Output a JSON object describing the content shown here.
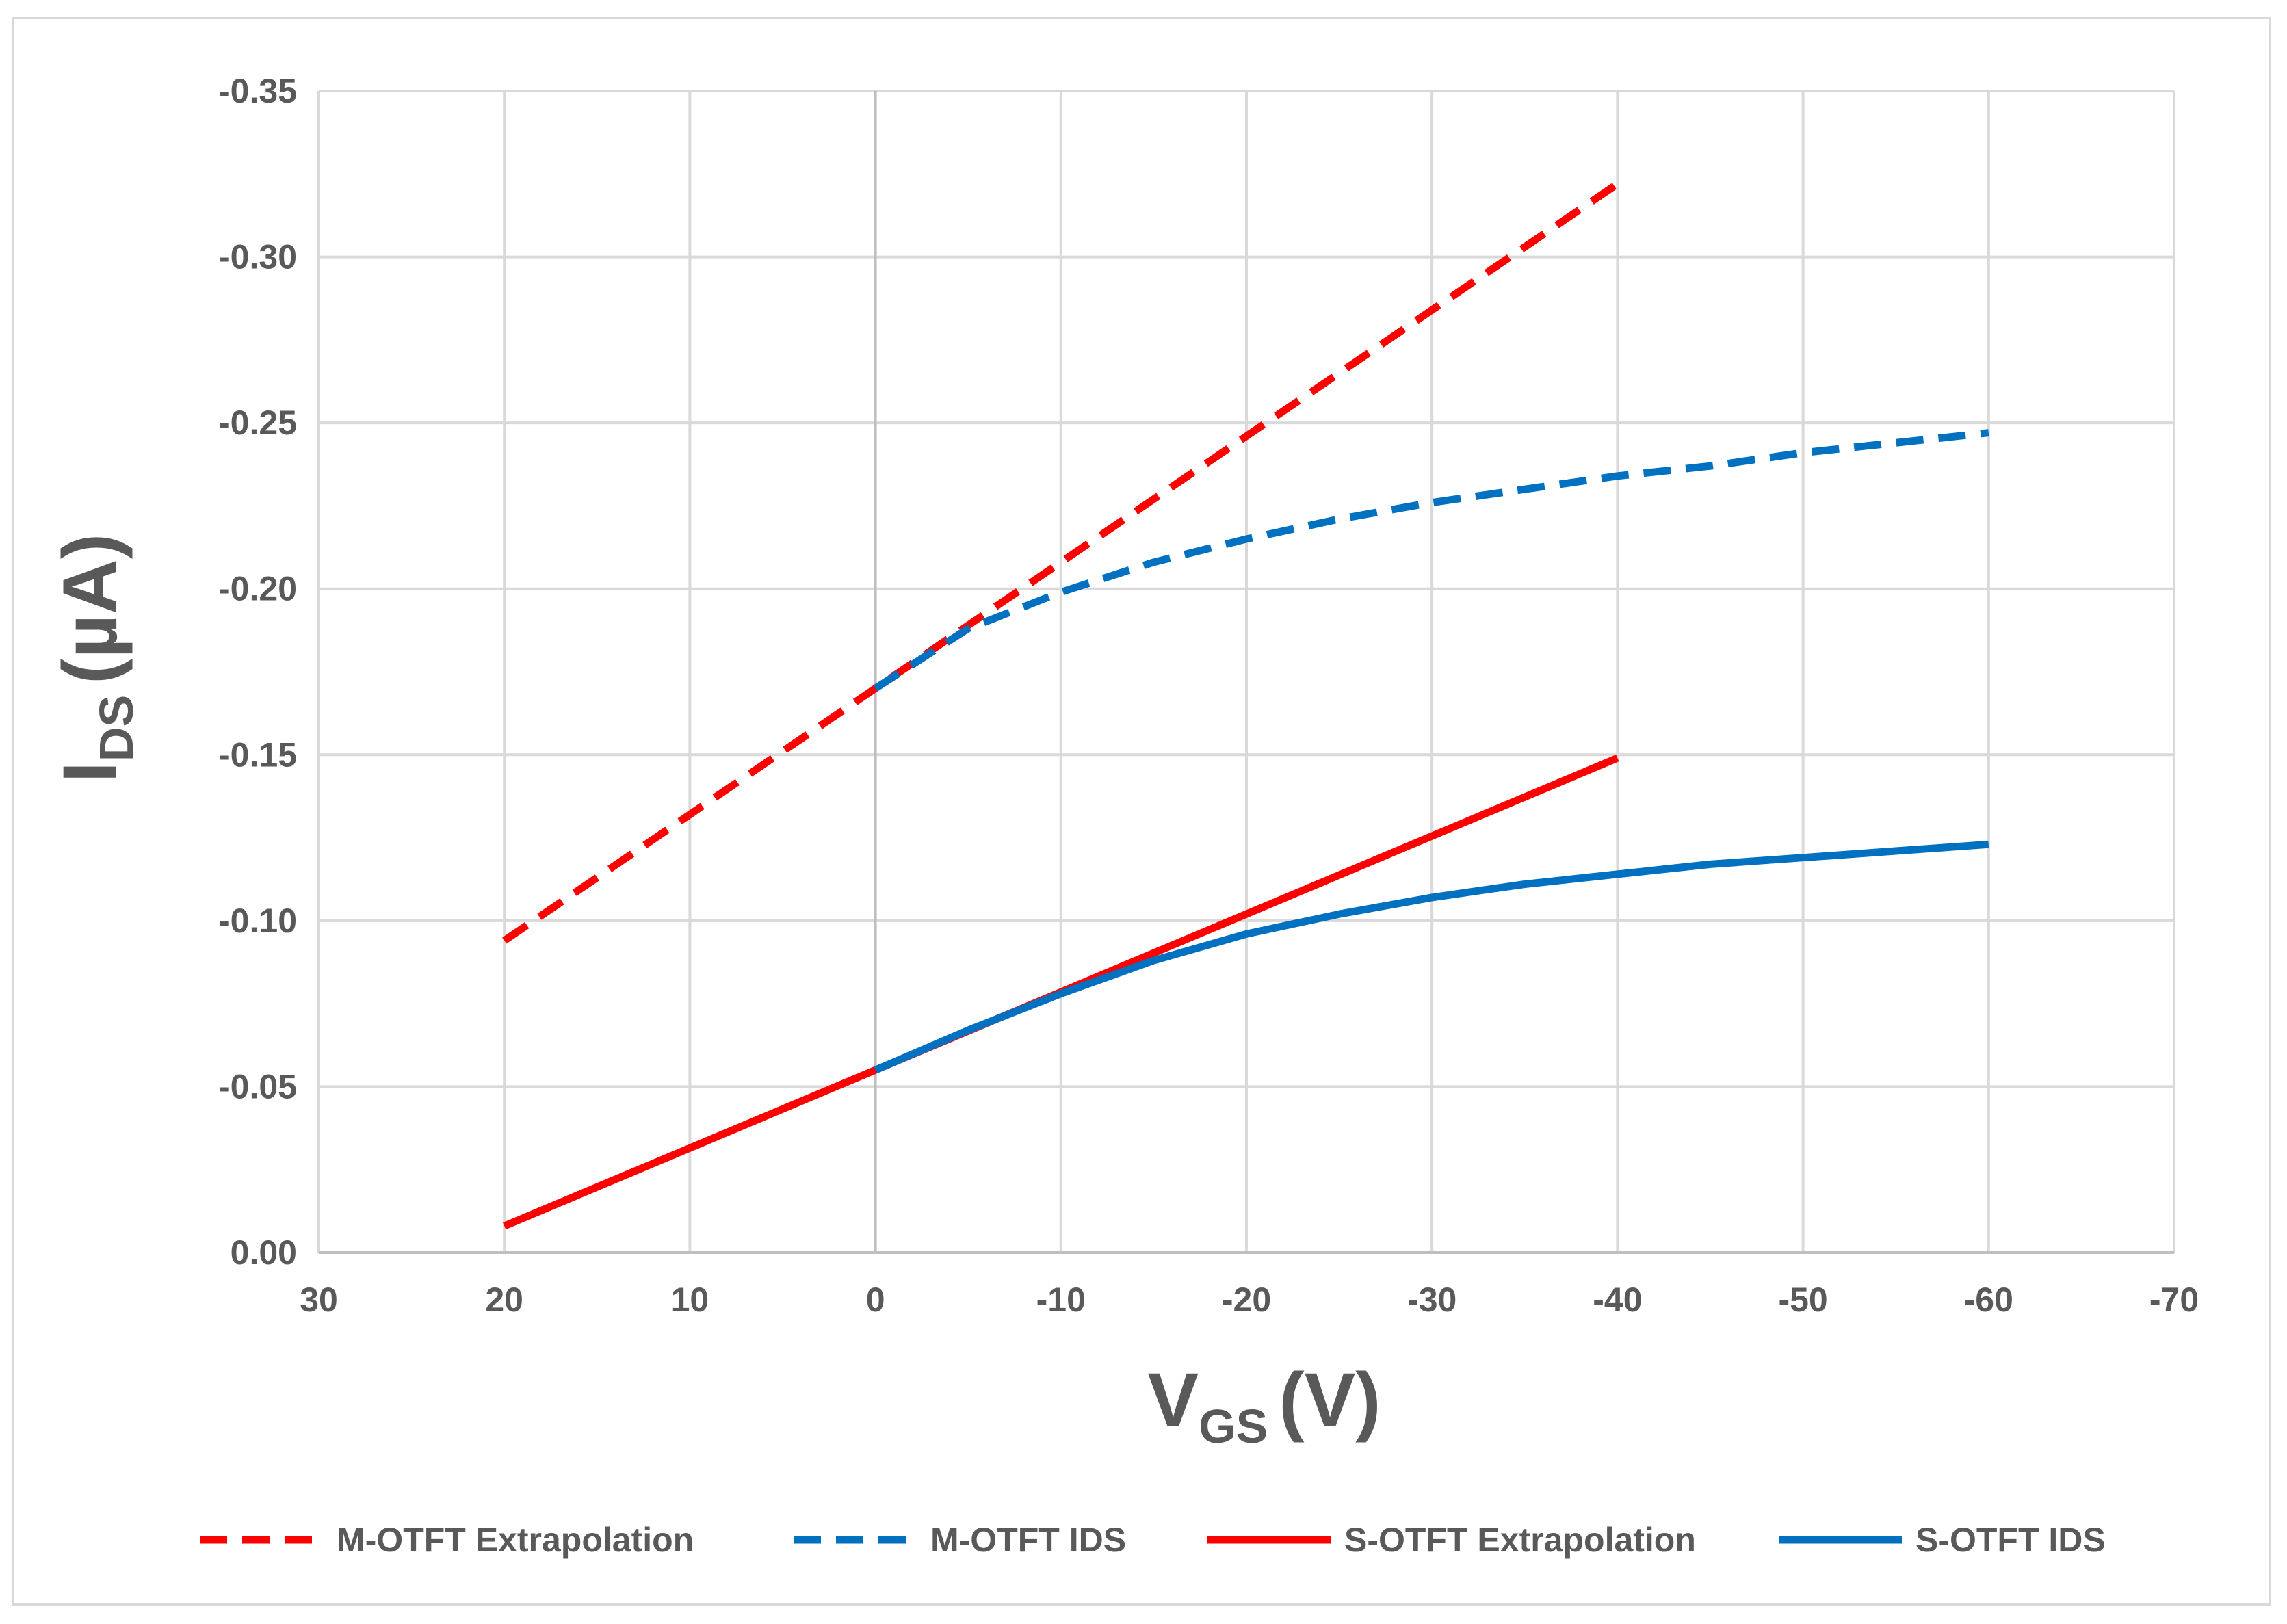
{
  "chart_data": {
    "type": "line",
    "title": "",
    "xlabel": {
      "main": "V",
      "sub": "GS",
      "unit": "(V)"
    },
    "ylabel": {
      "main": "I",
      "sub": "DS",
      "unit": "(µA)"
    },
    "xlim": [
      30,
      -70
    ],
    "ylim": [
      0,
      -0.35
    ],
    "x_ticks": [
      30,
      20,
      10,
      0,
      -10,
      -20,
      -30,
      -40,
      -50,
      -60,
      -70
    ],
    "x_tick_labels": [
      "30",
      "20",
      "10",
      "0",
      "-10",
      "-20",
      "-30",
      "-40",
      "-50",
      "-60",
      "-70"
    ],
    "y_ticks": [
      0,
      -0.05,
      -0.1,
      -0.15,
      -0.2,
      -0.25,
      -0.3,
      -0.35
    ],
    "y_tick_labels": [
      "0.00",
      "-0.05",
      "-0.10",
      "-0.15",
      "-0.20",
      "-0.25",
      "-0.30",
      "-0.35"
    ],
    "grid": true,
    "legend_position": "bottom",
    "series": [
      {
        "name": "M-OTFT Extrapolation",
        "color": "#ff0000",
        "style": "dashed",
        "x": [
          20,
          -40
        ],
        "y": [
          -0.094,
          -0.322
        ]
      },
      {
        "name": "M-OTFT IDS",
        "color": "#0070c0",
        "style": "dashed",
        "x": [
          0,
          -5,
          -10,
          -15,
          -20,
          -25,
          -30,
          -35,
          -40,
          -45,
          -50,
          -55,
          -60
        ],
        "y": [
          -0.17,
          -0.188,
          -0.199,
          -0.208,
          -0.215,
          -0.221,
          -0.226,
          -0.23,
          -0.234,
          -0.237,
          -0.241,
          -0.244,
          -0.247
        ]
      },
      {
        "name": "S-OTFT Extrapolation",
        "color": "#ff0000",
        "style": "solid",
        "x": [
          20,
          -40
        ],
        "y": [
          -0.008,
          -0.149
        ]
      },
      {
        "name": "S-OTFT IDS",
        "color": "#0070c0",
        "style": "solid",
        "x": [
          0,
          -5,
          -10,
          -15,
          -20,
          -25,
          -30,
          -35,
          -40,
          -45,
          -50,
          -55,
          -60
        ],
        "y": [
          -0.055,
          -0.067,
          -0.078,
          -0.088,
          -0.096,
          -0.102,
          -0.107,
          -0.111,
          -0.114,
          -0.117,
          -0.119,
          -0.121,
          -0.123
        ]
      }
    ]
  }
}
